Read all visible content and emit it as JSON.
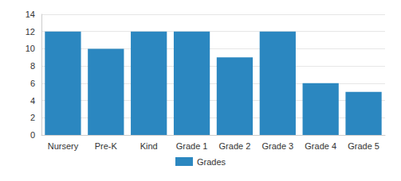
{
  "chart_data": {
    "type": "bar",
    "categories": [
      "Nursery",
      "Pre-K",
      "Kind",
      "Grade 1",
      "Grade 2",
      "Grade 3",
      "Grade 4",
      "Grade 5"
    ],
    "series": [
      {
        "name": "Grades",
        "color": "#2b87c0",
        "values": [
          12,
          10,
          12,
          12,
          9,
          12,
          6,
          5
        ]
      }
    ],
    "ylim": [
      0,
      14
    ],
    "yticks": [
      0,
      2,
      4,
      6,
      8,
      10,
      12,
      14
    ],
    "grid": true,
    "legend": "bottom"
  }
}
